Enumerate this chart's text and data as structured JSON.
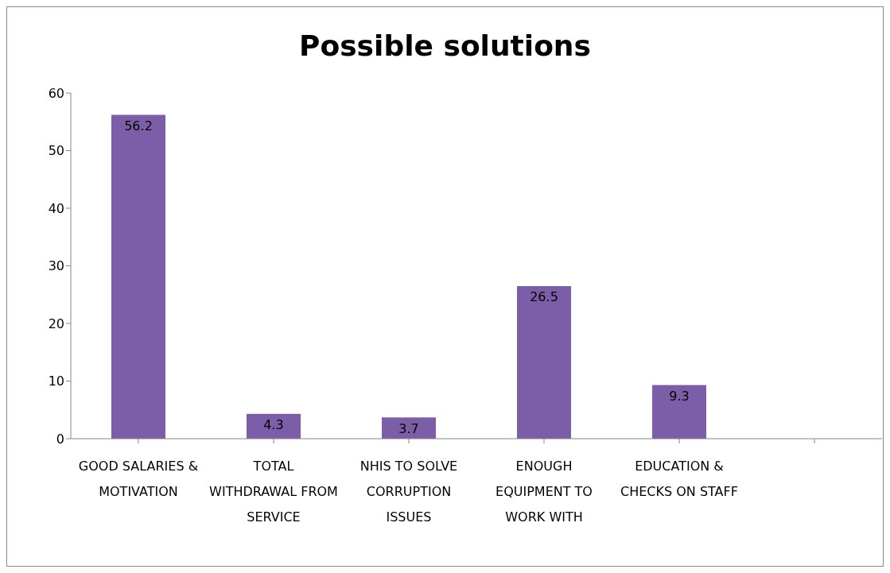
{
  "chart_data": {
    "type": "bar",
    "title": "Possible solutions",
    "categories": [
      "GOOD SALARIES & MOTIVATION",
      "TOTAL WITHDRAWAL FROM SERVICE",
      "NHIS TO SOLVE CORRUPTION ISSUES",
      "ENOUGH EQUIPMENT TO WORK WITH",
      "EDUCATION & CHECKS ON STAFF",
      null
    ],
    "values": [
      56.2,
      4.3,
      3.7,
      26.5,
      9.3,
      null
    ],
    "color": "#7b5ea7",
    "ylim": [
      0,
      60
    ],
    "yticks": [
      0,
      10,
      20,
      30,
      40,
      50,
      60
    ],
    "data_labels": true,
    "grid": false,
    "legend": false
  }
}
